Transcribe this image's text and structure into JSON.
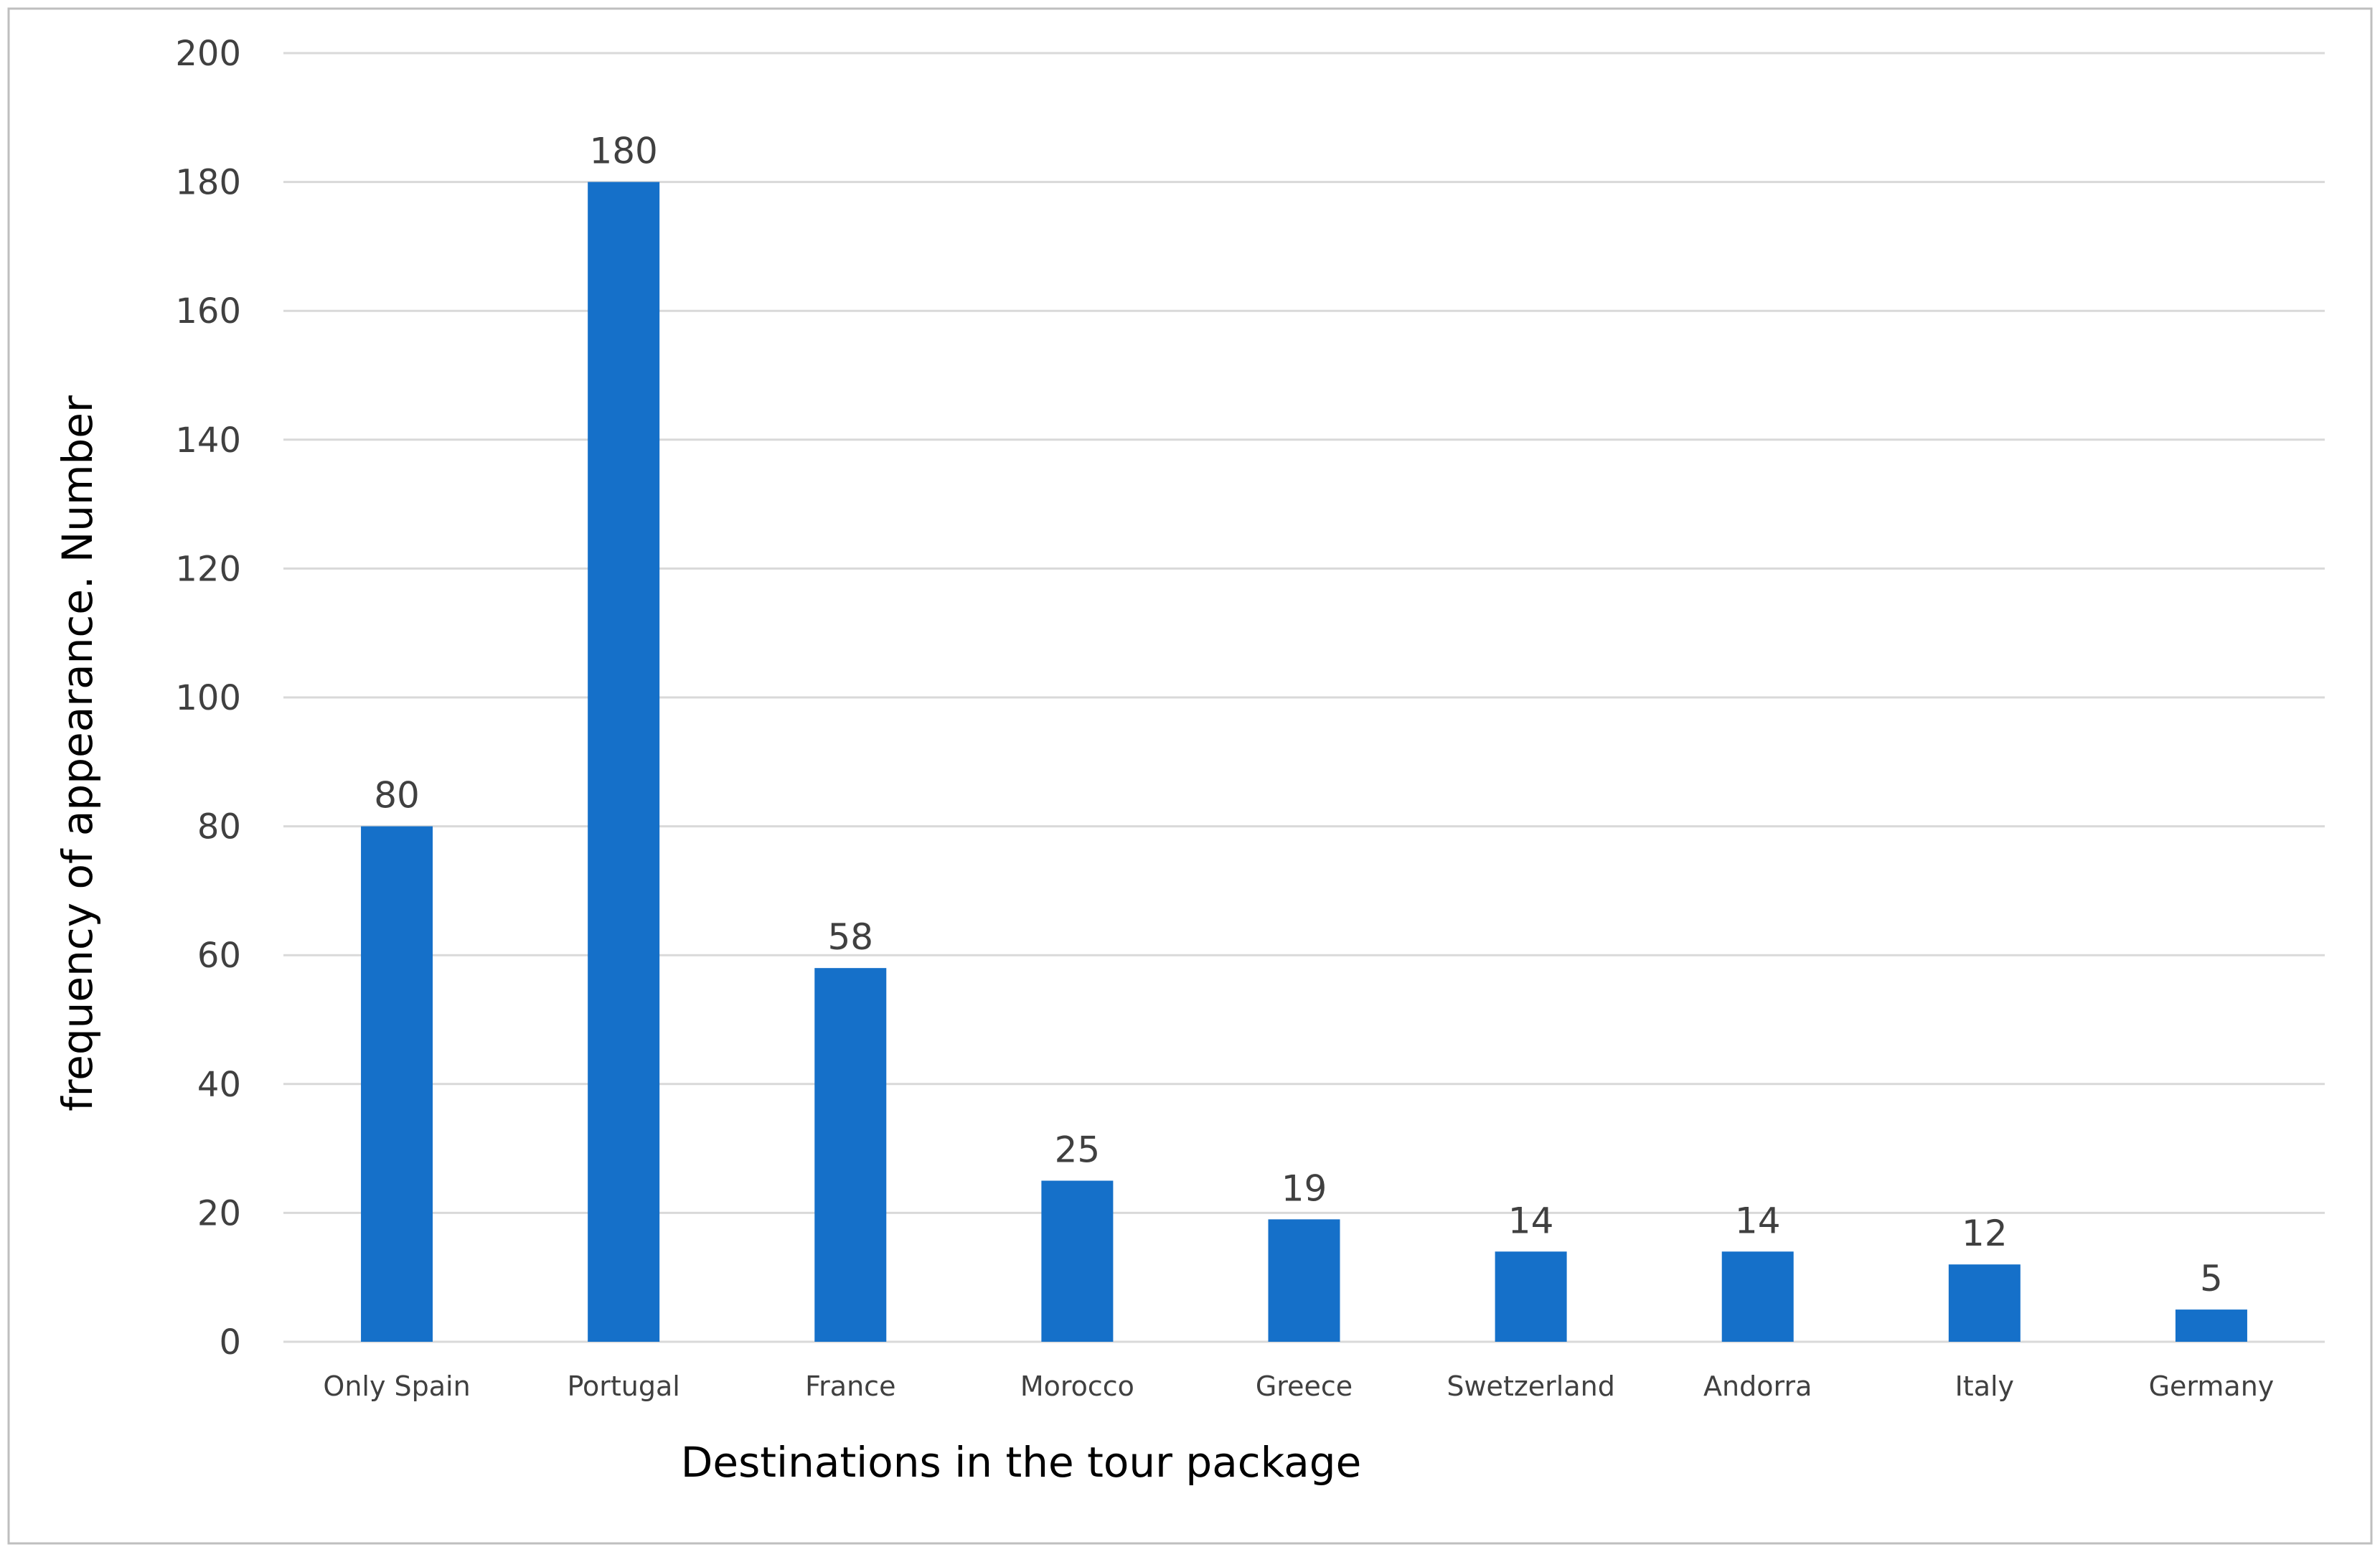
{
  "chart_data": {
    "type": "bar",
    "title": "",
    "xlabel": "Destinations in the tour package",
    "ylabel": "frequency of appearance. Number",
    "categories": [
      "Only Spain",
      "Portugal",
      "France",
      "Morocco",
      "Greece",
      "Swetzerland",
      "Andorra",
      "Italy",
      "Germany"
    ],
    "series": [
      {
        "values": [
          80,
          180,
          58,
          25,
          19,
          14,
          14,
          12,
          5
        ],
        "color": "#1570C9"
      }
    ],
    "ylim": [
      0,
      200
    ],
    "yticks": [
      0,
      20,
      40,
      60,
      80,
      100,
      120,
      140,
      160,
      180,
      200
    ],
    "grid": true,
    "legend": "none",
    "data_labels": true,
    "colors": {
      "bar": "#1570C9",
      "grid": "#d9d9d9",
      "frame": "#bfbfbf"
    }
  }
}
